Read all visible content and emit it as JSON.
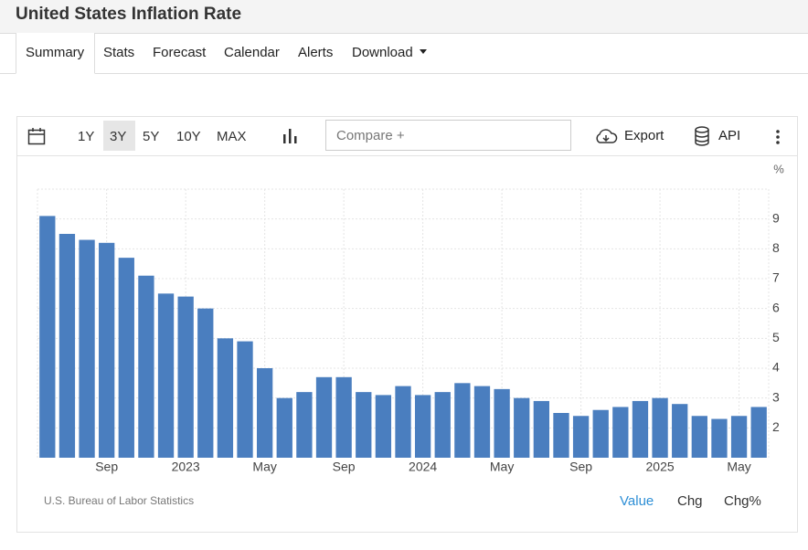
{
  "header": {
    "title": "United States Inflation Rate"
  },
  "tabs": [
    "Summary",
    "Stats",
    "Forecast",
    "Calendar",
    "Alerts",
    "Download"
  ],
  "toolbar": {
    "ranges": [
      "1Y",
      "3Y",
      "5Y",
      "10Y",
      "MAX"
    ],
    "compare": "Compare +",
    "export": "Export",
    "api": "API"
  },
  "chart_data": {
    "type": "bar",
    "ylabel": "%",
    "source": "U.S. Bureau of Labor Statistics",
    "categories": [
      null,
      null,
      null,
      "Sep",
      null,
      null,
      null,
      "2023",
      null,
      null,
      null,
      "May",
      null,
      null,
      null,
      "Sep",
      null,
      null,
      null,
      "2024",
      null,
      null,
      null,
      "May",
      null,
      null,
      null,
      "Sep",
      null,
      null,
      null,
      "2025",
      null,
      null,
      null,
      "May",
      null
    ],
    "values": [
      9.1,
      8.5,
      8.3,
      8.2,
      7.7,
      7.1,
      6.5,
      6.4,
      6.0,
      5.0,
      4.9,
      4.0,
      3.0,
      3.2,
      3.7,
      3.7,
      3.2,
      3.1,
      3.4,
      3.1,
      3.2,
      3.5,
      3.4,
      3.3,
      3.0,
      2.9,
      2.5,
      2.4,
      2.6,
      2.7,
      2.9,
      3.0,
      2.8,
      2.4,
      2.3,
      2.4,
      2.7
    ],
    "color": "#4a7ebf",
    "ylim": [
      1,
      10
    ],
    "yticks": [
      2,
      3,
      4,
      5,
      6,
      7,
      8,
      9
    ],
    "grid": true
  },
  "footer": {
    "modes": [
      "Value",
      "Chg",
      "Chg%"
    ]
  }
}
